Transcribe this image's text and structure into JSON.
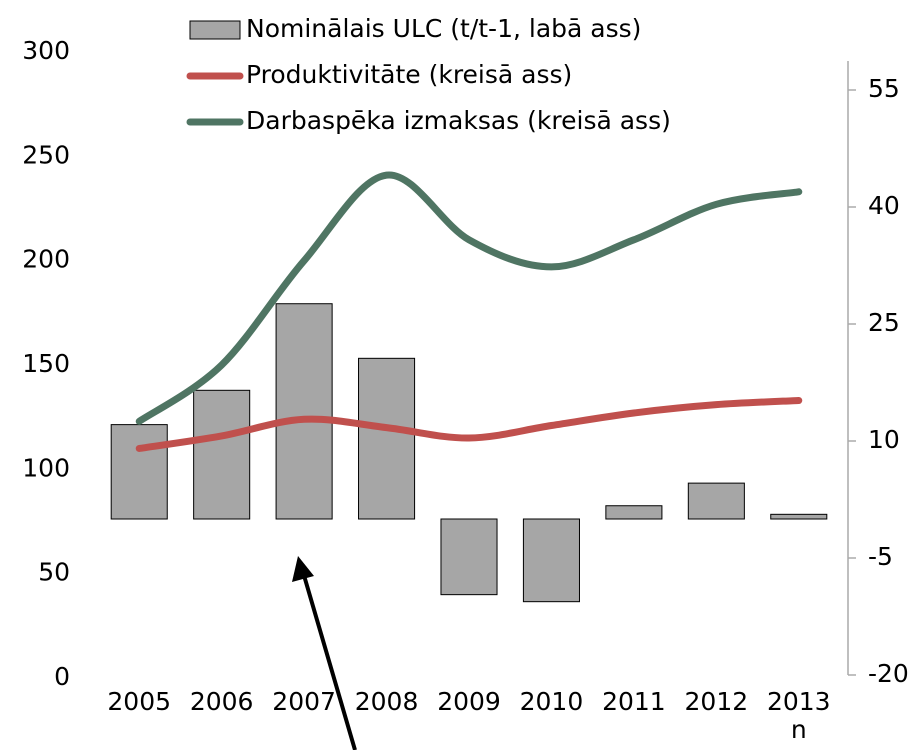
{
  "chart_data": {
    "type": "bar-line",
    "categories": [
      "2005",
      "2006",
      "2007",
      "2008",
      "2009",
      "2010",
      "2011",
      "2012",
      "2013 n"
    ],
    "series": [
      {
        "name": "Nominālais ULC (t/t-1, labā ass)",
        "type": "bar",
        "axis": "y2",
        "color": "#a6a6a6",
        "values": [
          12.1,
          16.5,
          27.6,
          20.6,
          -9.7,
          -10.6,
          1.7,
          4.6,
          0.6
        ]
      },
      {
        "name": "Produktivitāte (kreisā ass)",
        "type": "line",
        "axis": "y",
        "color": "#c0504d",
        "values": [
          110,
          116,
          124,
          120,
          115,
          121,
          127,
          131,
          133
        ]
      },
      {
        "name": "Darbaspēka izmaksas (kreisā ass)",
        "type": "line",
        "axis": "y",
        "color": "#4f7563",
        "values": [
          123,
          150,
          200,
          241,
          210,
          197,
          210,
          227,
          233
        ]
      }
    ],
    "ylim": [
      0,
      300
    ],
    "yticks": [
      0,
      50,
      100,
      150,
      200,
      250,
      300
    ],
    "y2lim": [
      -20,
      60
    ],
    "y2ticks": [
      -20,
      -5,
      10,
      25,
      40,
      55
    ]
  }
}
